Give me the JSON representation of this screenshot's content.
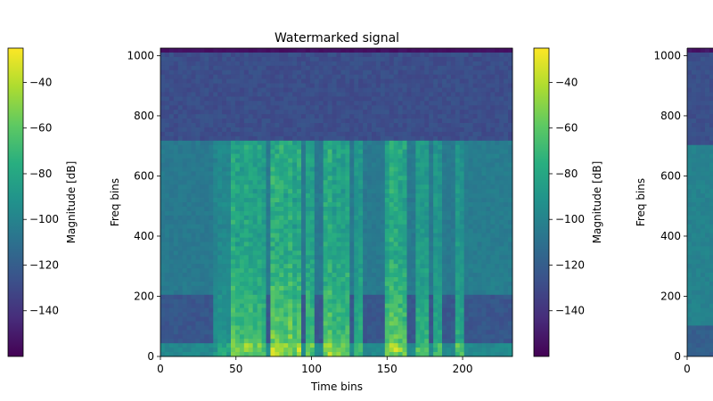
{
  "chart_data": [
    {
      "type": "heatmap",
      "title": "",
      "xlabel": "",
      "ylabel": "",
      "colorbar": {
        "label": "Magnitude [dB]",
        "ticks": [
          -40,
          -60,
          -80,
          -100,
          -120,
          -140
        ],
        "tick_labels": [
          "−40",
          "−60",
          "−80",
          "−100",
          "−120",
          "−140"
        ],
        "range": [
          -160,
          -25
        ],
        "colormap": "viridis"
      }
    },
    {
      "type": "heatmap",
      "title": "Watermarked signal",
      "xlabel": "Time bins",
      "ylabel": "Freq bins",
      "xlim": [
        0,
        233
      ],
      "ylim": [
        0,
        1025
      ],
      "x_ticks": [
        0,
        50,
        100,
        150,
        200
      ],
      "x_tick_labels": [
        "0",
        "50",
        "100",
        "150",
        "200"
      ],
      "y_ticks": [
        0,
        200,
        400,
        600,
        800,
        1000
      ],
      "y_tick_labels": [
        "0",
        "200",
        "400",
        "600",
        "800",
        "1000"
      ],
      "colormap": "viridis",
      "colorbar": {
        "label": "Magnitude [dB]",
        "ticks": [
          -40,
          -60,
          -80,
          -100,
          -120,
          -140
        ],
        "tick_labels": [
          "−40",
          "−60",
          "−80",
          "−100",
          "−120",
          "−140"
        ],
        "range": [
          -160,
          -25
        ]
      }
    },
    {
      "type": "heatmap",
      "title": "",
      "xlabel": "",
      "ylabel": "Freq bins",
      "ylim": [
        0,
        1025
      ],
      "x_ticks": [
        0
      ],
      "x_tick_labels": [
        "0"
      ],
      "y_ticks": [
        0,
        200,
        400,
        600,
        800,
        1000
      ],
      "y_tick_labels": [
        "0",
        "200",
        "400",
        "600",
        "800",
        "1000"
      ],
      "colormap": "viridis"
    }
  ]
}
